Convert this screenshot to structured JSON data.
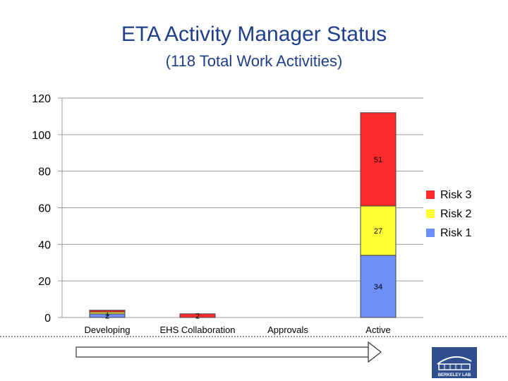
{
  "title": "ETA Activity Manager Status",
  "subtitle": "(118 Total Work Activities)",
  "colors": {
    "risk1": "#6d8ff7",
    "risk2": "#ffff33",
    "risk3": "#ff2a2a",
    "title": "#1f3f8a",
    "grid": "#9a9a9a",
    "logo": "#2f4f8f"
  },
  "logo_text": "BERKELEY LAB",
  "chart_data": {
    "type": "bar",
    "stacked": true,
    "categories": [
      "Developing",
      "EHS Collaboration",
      "Approvals",
      "Active"
    ],
    "series": [
      {
        "name": "Risk 1",
        "values": [
          2,
          0,
          0,
          34
        ],
        "labels": [
          "2",
          "",
          "",
          "34"
        ]
      },
      {
        "name": "Risk 2",
        "values": [
          1,
          0,
          0,
          27
        ],
        "labels": [
          "1",
          "",
          "",
          "27"
        ]
      },
      {
        "name": "Risk 3",
        "values": [
          1,
          2,
          0,
          51
        ],
        "labels": [
          "",
          "2",
          "",
          "51"
        ]
      }
    ],
    "ylim": [
      0,
      120
    ],
    "yticks": [
      0,
      20,
      40,
      60,
      80,
      100,
      120
    ],
    "grid": true,
    "legend": "right",
    "legend_order": [
      "Risk 3",
      "Risk 2",
      "Risk 1"
    ]
  }
}
